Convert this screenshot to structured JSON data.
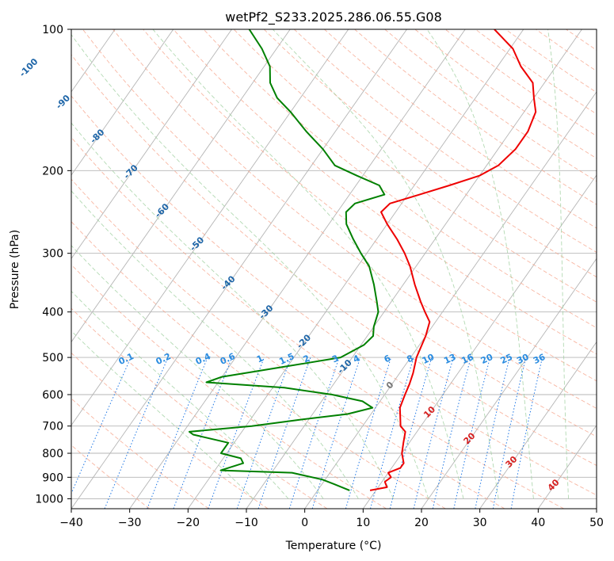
{
  "chart_data": {
    "type": "line",
    "title": "wetPf2_S233.2025.286.06.55.G08",
    "xlabel": "Temperature (°C)",
    "ylabel": "Pressure (hPa)",
    "xlim": [
      -40,
      50
    ],
    "ylim": [
      1050,
      100
    ],
    "y_scale": "log",
    "grid": true,
    "x_ticks": [
      -40,
      -30,
      -20,
      -10,
      0,
      10,
      20,
      30,
      40,
      50
    ],
    "y_ticks": [
      1000,
      900,
      800,
      700,
      600,
      500,
      400,
      300,
      200,
      100
    ],
    "x_tick_labels": [
      "−40",
      "−30",
      "−20",
      "−10",
      "0",
      "10",
      "20",
      "30",
      "40",
      "50"
    ],
    "y_tick_labels": [
      "1000",
      "900",
      "800",
      "700",
      "600",
      "500",
      "400",
      "300",
      "200",
      "100"
    ],
    "isotherm_labels": [
      "-100",
      "-90",
      "-80",
      "-70",
      "-60",
      "-50",
      "-40",
      "-30",
      "-20",
      "-10",
      "0",
      "10",
      "20",
      "30",
      "40"
    ],
    "mixing_ratio_labels": [
      "0.1",
      "0.2",
      "0.4",
      "0.6",
      "1",
      "1.5",
      "2",
      "3",
      "4",
      "6",
      "8",
      "10",
      "13",
      "16",
      "20",
      "25",
      "30",
      "36"
    ],
    "series": [
      {
        "role": "temperature",
        "color": "#ee0000",
        "points": [
          [
            960,
            9.0
          ],
          [
            945,
            11.5
          ],
          [
            920,
            10.5
          ],
          [
            900,
            11.0
          ],
          [
            880,
            10.0
          ],
          [
            860,
            11.5
          ],
          [
            840,
            11.5
          ],
          [
            800,
            10.0
          ],
          [
            760,
            9.0
          ],
          [
            720,
            8.0
          ],
          [
            700,
            6.5
          ],
          [
            660,
            5.0
          ],
          [
            640,
            4.2
          ],
          [
            600,
            3.5
          ],
          [
            570,
            3.0
          ],
          [
            540,
            2.3
          ],
          [
            500,
            1.0
          ],
          [
            450,
            0.0
          ],
          [
            420,
            -1.0
          ],
          [
            400,
            -3.0
          ],
          [
            380,
            -5.0
          ],
          [
            350,
            -8.0
          ],
          [
            320,
            -11.0
          ],
          [
            300,
            -13.5
          ],
          [
            280,
            -16.5
          ],
          [
            260,
            -20.0
          ],
          [
            245,
            -22.5
          ],
          [
            235,
            -22.0
          ],
          [
            225,
            -18.0
          ],
          [
            215,
            -14.0
          ],
          [
            205,
            -10.0
          ],
          [
            195,
            -8.0
          ],
          [
            180,
            -7.0
          ],
          [
            165,
            -7.0
          ],
          [
            150,
            -8.0
          ],
          [
            140,
            -10.0
          ],
          [
            130,
            -12.0
          ],
          [
            120,
            -16.0
          ],
          [
            110,
            -19.5
          ],
          [
            100,
            -25.0
          ]
        ]
      },
      {
        "role": "dewpoint",
        "color": "#008000",
        "points": [
          [
            960,
            5.5
          ],
          [
            930,
            2.0
          ],
          [
            910,
            -0.5
          ],
          [
            890,
            -4.5
          ],
          [
            880,
            -6.5
          ],
          [
            870,
            -19.0
          ],
          [
            840,
            -16.0
          ],
          [
            820,
            -17.0
          ],
          [
            800,
            -21.0
          ],
          [
            760,
            -21.0
          ],
          [
            730,
            -28.0
          ],
          [
            720,
            -29.0
          ],
          [
            700,
            -19.0
          ],
          [
            680,
            -12.0
          ],
          [
            660,
            -4.0
          ],
          [
            640,
            -0.5
          ],
          [
            620,
            -3.0
          ],
          [
            600,
            -9.0
          ],
          [
            580,
            -18.0
          ],
          [
            565,
            -32.0
          ],
          [
            550,
            -30.0
          ],
          [
            530,
            -23.0
          ],
          [
            515,
            -17.5
          ],
          [
            500,
            -12.0
          ],
          [
            470,
            -9.5
          ],
          [
            450,
            -9.0
          ],
          [
            430,
            -10.0
          ],
          [
            400,
            -11.0
          ],
          [
            380,
            -12.5
          ],
          [
            350,
            -15.0
          ],
          [
            320,
            -18.0
          ],
          [
            300,
            -21.0
          ],
          [
            280,
            -24.0
          ],
          [
            260,
            -27.0
          ],
          [
            245,
            -28.5
          ],
          [
            235,
            -28.0
          ],
          [
            225,
            -24.0
          ],
          [
            215,
            -26.0
          ],
          [
            205,
            -31.0
          ],
          [
            195,
            -36.0
          ],
          [
            180,
            -40.0
          ],
          [
            165,
            -45.0
          ],
          [
            150,
            -50.0
          ],
          [
            140,
            -54.0
          ],
          [
            130,
            -57.0
          ],
          [
            120,
            -59.0
          ],
          [
            110,
            -62.5
          ],
          [
            100,
            -67.0
          ]
        ]
      }
    ]
  }
}
